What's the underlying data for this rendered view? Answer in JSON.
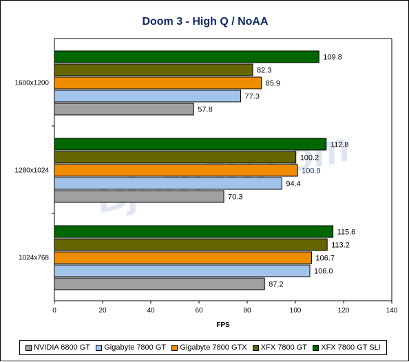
{
  "chart_data": {
    "type": "bar",
    "orientation": "horizontal",
    "title": "Doom 3 - High Q / NoAA",
    "xlabel": "FPS",
    "ylabel": "",
    "xlim": [
      0,
      140
    ],
    "xticks": [
      0,
      20,
      40,
      60,
      80,
      100,
      120,
      140
    ],
    "grid": false,
    "legend_position": "bottom",
    "watermark": "Bjorn3D.com",
    "categories": [
      "1600x1200",
      "1280x1024",
      "1024x768"
    ],
    "series": [
      {
        "name": "NVIDIA 6800 GT",
        "color": "#a0a0a0",
        "values": [
          57.8,
          70.3,
          87.2
        ]
      },
      {
        "name": "Gigabyte 7800 GT",
        "color": "#a3c4ea",
        "values": [
          77.3,
          94.4,
          106.0
        ]
      },
      {
        "name": "Gigabyte 7800 GTX",
        "color": "#f08c00",
        "values": [
          85.9,
          100.9,
          106.7
        ]
      },
      {
        "name": "XFX 7800 GT",
        "color": "#666600",
        "values": [
          82.3,
          100.2,
          113.2
        ]
      },
      {
        "name": "XFX 7800 GT SLI",
        "color": "#006600",
        "values": [
          109.8,
          112.8,
          115.6
        ]
      }
    ],
    "value_labels": [
      [
        "57.8",
        "70.3",
        "87.2"
      ],
      [
        "77.3",
        "94.4",
        "106.0"
      ],
      [
        "85.9",
        "100.9",
        "106.7"
      ],
      [
        "82.3",
        "100.2",
        "113.2"
      ],
      [
        "109.8",
        "112.8",
        "115.6"
      ]
    ],
    "blue_labels": [
      "100.9"
    ]
  }
}
